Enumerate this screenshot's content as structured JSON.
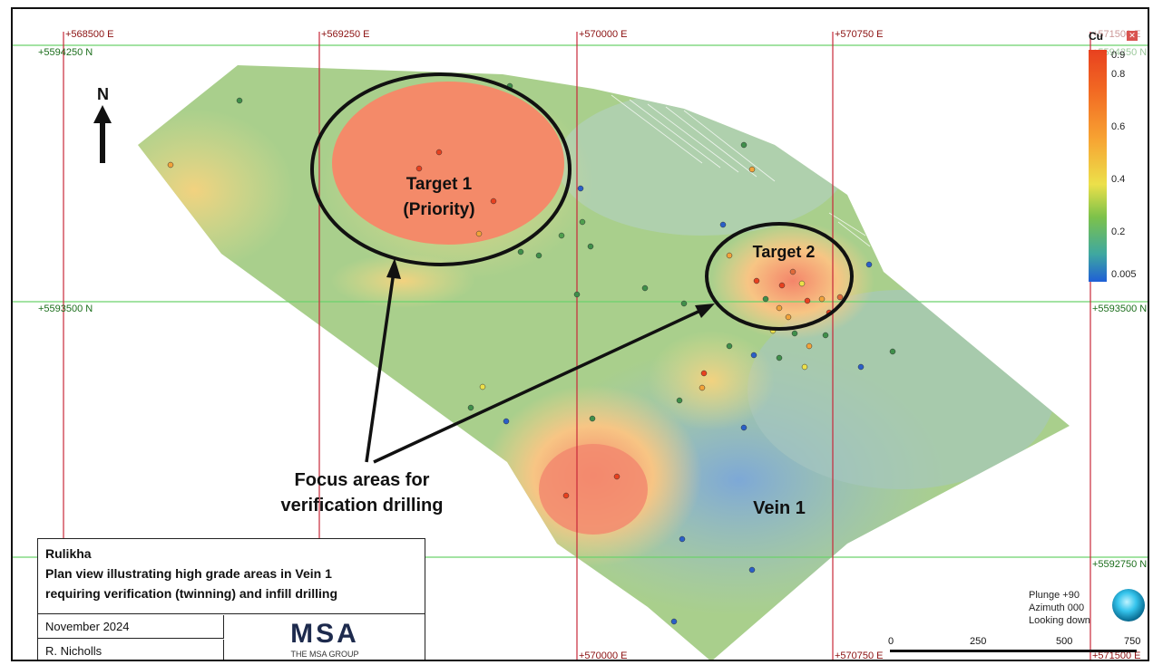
{
  "grid": {
    "easting_top": [
      "+568500 E",
      "+569250 E",
      "+570000 E",
      "+570750 E",
      "+571500 E"
    ],
    "easting_bottom": [
      "+570000 E",
      "+570750 E",
      "+571500 E"
    ],
    "northing_left": [
      "+5594250 N",
      "+5593500 N"
    ],
    "northing_right": [
      "+5594250 N",
      "+5593500 N",
      "+5592750 N"
    ]
  },
  "north_label": "N",
  "annotations": {
    "target1_line1": "Target 1",
    "target1_line2": "(Priority)",
    "target2": "Target 2",
    "focus_line1": "Focus areas for",
    "focus_line2": "verification drilling",
    "vein": "Vein 1"
  },
  "legend": {
    "project": "Rulikha",
    "desc_line1": "Plan view illustrating high grade areas in Vein 1",
    "desc_line2": "requiring verification (twinning) and infill drilling",
    "date": "November 2024",
    "author": "R. Nicholls",
    "logo_text": "MSA",
    "logo_sub": "THE MSA GROUP"
  },
  "color_scale": {
    "title": "Cu",
    "ticks": [
      "0.9",
      "0.8",
      "0.6",
      "0.4",
      "0.2",
      "0.005"
    ],
    "colors": {
      "high": "#e8411f",
      "mid": "#f7a232",
      "low": "#7dc24a",
      "min": "#1f5fd6"
    }
  },
  "view": {
    "plunge": "Plunge +90",
    "azimuth": "Azimuth 000",
    "looking": "Looking down"
  },
  "scale_bar": {
    "labels": [
      "0",
      "250",
      "500",
      "750"
    ]
  },
  "colors": {
    "easting_line": "#c8283a",
    "northing_line": "#6cd26c"
  }
}
